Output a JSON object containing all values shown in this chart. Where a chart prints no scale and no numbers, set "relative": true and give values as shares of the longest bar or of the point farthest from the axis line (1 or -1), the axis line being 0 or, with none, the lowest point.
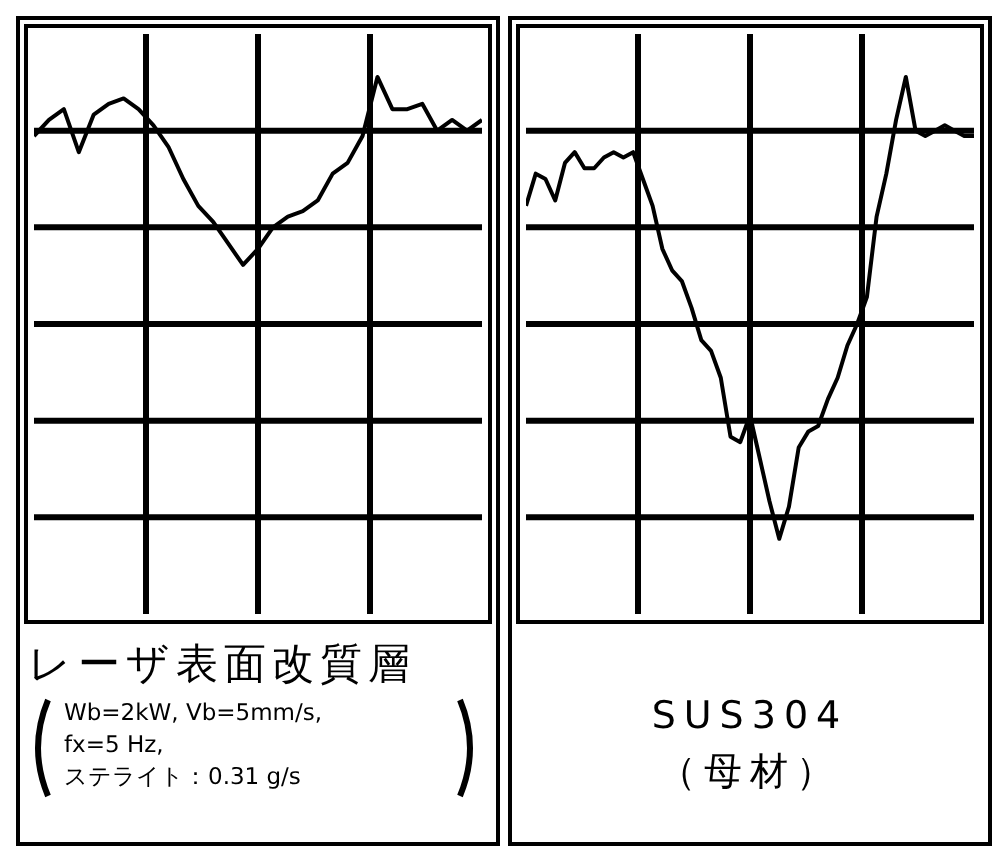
{
  "chart_data": [
    {
      "type": "line",
      "relative": true,
      "grid": true,
      "tick_labels": false,
      "title": "レーザ表面改質層",
      "annotations": [
        "Wb=2kW, Vb=5mm/s,",
        "fx=5 Hz,",
        "ステライト：0.31 g/s"
      ],
      "categories": [
        null,
        null,
        null,
        null,
        null,
        null,
        null,
        null,
        null,
        null,
        null,
        null,
        null,
        null,
        null,
        null,
        null,
        null,
        null,
        null,
        null,
        null,
        null,
        null,
        null,
        null,
        null,
        null,
        null,
        null,
        null
      ],
      "series": [
        {
          "color": "#000000",
          "values": [
            0.89,
            0.92,
            0.94,
            0.86,
            0.93,
            0.95,
            0.96,
            0.94,
            0.91,
            0.87,
            0.81,
            0.76,
            0.73,
            0.69,
            0.65,
            0.68,
            0.72,
            0.74,
            0.75,
            0.77,
            0.82,
            0.84,
            0.89,
            1,
            0.94,
            0.94,
            0.95,
            0.9,
            0.92,
            0.9,
            0.92
          ]
        }
      ]
    },
    {
      "type": "line",
      "relative": true,
      "grid": true,
      "tick_labels": false,
      "title": "SUS304",
      "subtitle": "（母材）",
      "categories": [
        null,
        null,
        null,
        null,
        null,
        null,
        null,
        null,
        null,
        null,
        null,
        null,
        null,
        null,
        null,
        null,
        null,
        null,
        null,
        null,
        null,
        null,
        null,
        null,
        null,
        null,
        null,
        null,
        null,
        null,
        null,
        null,
        null,
        null,
        null,
        null,
        null,
        null,
        null,
        null,
        null,
        null,
        null,
        null,
        null,
        null,
        null
      ],
      "series": [
        {
          "color": "#000000",
          "values": [
            0.76,
            0.82,
            0.81,
            0.77,
            0.84,
            0.86,
            0.83,
            0.83,
            0.85,
            0.86,
            0.85,
            0.86,
            0.81,
            0.76,
            0.68,
            0.64,
            0.62,
            0.57,
            0.51,
            0.49,
            0.44,
            0.33,
            0.32,
            0.37,
            0.29,
            0.21,
            0.14,
            0.2,
            0.31,
            0.34,
            0.35,
            0.4,
            0.44,
            0.5,
            0.54,
            0.59,
            0.74,
            0.82,
            0.92,
            1,
            0.9,
            0.89,
            0.9,
            0.91,
            0.9,
            0.89,
            0.89
          ]
        }
      ]
    }
  ]
}
